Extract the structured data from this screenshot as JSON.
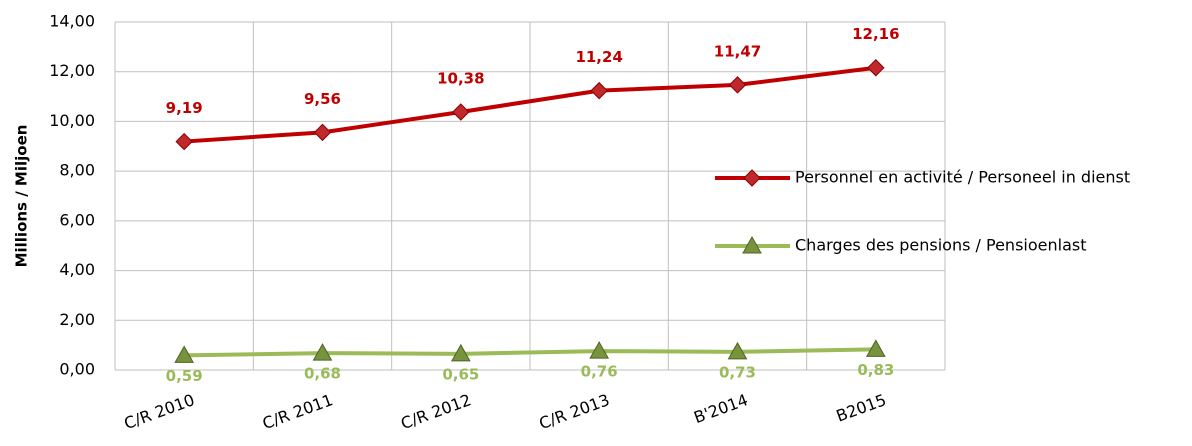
{
  "chart_data": {
    "type": "line",
    "y_label": "Millions / Miljoen",
    "categories": [
      "C/R 2010",
      "C/R 2011",
      "C/R 2012",
      "C/R 2013",
      "B'2014",
      "B2015"
    ],
    "series": [
      {
        "name": "Personnel en activité / Personeel in dienst",
        "color": "#c00000",
        "marker": "diamond",
        "values": [
          9.19,
          9.56,
          10.38,
          11.24,
          11.47,
          12.16
        ],
        "value_labels": [
          "9,19",
          "9,56",
          "10,38",
          "11,24",
          "11,47",
          "12,16"
        ]
      },
      {
        "name": "Charges des pensions / Pensioenlast",
        "color": "#9bbb59",
        "marker": "triangle",
        "values": [
          0.59,
          0.68,
          0.65,
          0.76,
          0.73,
          0.83
        ],
        "value_labels": [
          "0,59",
          "0,68",
          "0,65",
          "0,76",
          "0,73",
          "0,83"
        ]
      }
    ],
    "ylim": [
      0,
      14
    ],
    "yticks": [
      {
        "value": 0,
        "label": "0,00"
      },
      {
        "value": 2,
        "label": "2,00"
      },
      {
        "value": 4,
        "label": "4,00"
      },
      {
        "value": 6,
        "label": "6,00"
      },
      {
        "value": 8,
        "label": "8,00"
      },
      {
        "value": 10,
        "label": "10,00"
      },
      {
        "value": 12,
        "label": "12,00"
      },
      {
        "value": 14,
        "label": "14,00"
      }
    ],
    "grid": true,
    "legend": "right"
  }
}
